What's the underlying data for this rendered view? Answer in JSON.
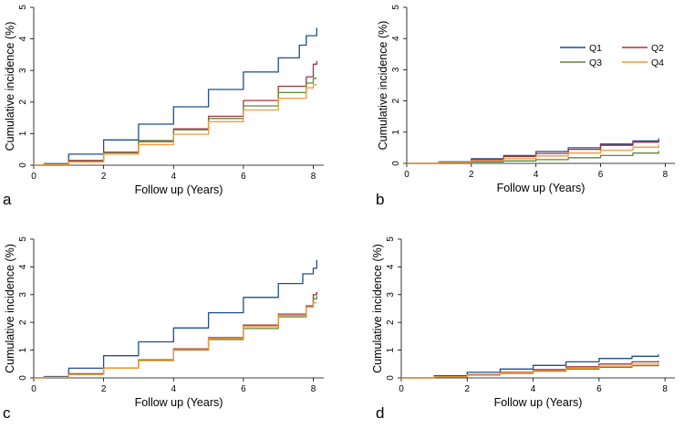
{
  "colors": {
    "Q1": "#1f4e8c",
    "Q2": "#a8333c",
    "Q3": "#5a8a35",
    "Q4": "#f39a36"
  },
  "legend": {
    "entries": [
      "Q1",
      "Q2",
      "Q3",
      "Q4"
    ],
    "placement": "top-right of panel b"
  },
  "chart_data": [
    {
      "panel": "a",
      "type": "line",
      "xlabel": "Follow up (Years)",
      "ylabel": "Cumulative incidence (%)",
      "xlim": [
        0,
        8.3
      ],
      "ylim": [
        0,
        5
      ],
      "xticks": [
        "0",
        "2",
        "4",
        "6",
        "8"
      ],
      "yticks": [
        "0",
        "1",
        "2",
        "3",
        "4",
        "5"
      ],
      "series": [
        {
          "name": "Q1",
          "x": [
            0,
            0.3,
            1,
            2,
            3,
            4,
            5,
            6,
            7,
            7.6,
            7.8,
            8,
            8.1
          ],
          "y": [
            0,
            0.05,
            0.35,
            0.8,
            1.3,
            1.85,
            2.4,
            2.95,
            3.4,
            3.8,
            4.1,
            4.1,
            4.35
          ]
        },
        {
          "name": "Q2",
          "x": [
            0,
            0.3,
            1,
            2,
            3,
            4,
            5,
            6,
            7,
            7.8,
            8,
            8.1
          ],
          "y": [
            0,
            0.02,
            0.15,
            0.4,
            0.75,
            1.15,
            1.55,
            2.05,
            2.5,
            2.8,
            3.2,
            3.3
          ]
        },
        {
          "name": "Q3",
          "x": [
            0,
            0.3,
            1,
            2,
            3,
            4,
            5,
            6,
            7,
            7.8,
            8,
            8.1
          ],
          "y": [
            0,
            0.02,
            0.12,
            0.42,
            0.78,
            1.12,
            1.48,
            1.88,
            2.3,
            2.6,
            2.75,
            2.75
          ]
        },
        {
          "name": "Q4",
          "x": [
            0,
            0.3,
            1,
            2,
            3,
            4,
            5,
            6,
            7,
            7.8,
            8,
            8.1
          ],
          "y": [
            0,
            0.02,
            0.1,
            0.35,
            0.65,
            0.98,
            1.38,
            1.75,
            2.12,
            2.45,
            2.55,
            2.55
          ]
        }
      ]
    },
    {
      "panel": "b",
      "type": "line",
      "xlabel": "Follow up (Years)",
      "ylabel": "Cumulative incidence (%)",
      "xlim": [
        0,
        8.3
      ],
      "ylim": [
        0,
        5
      ],
      "xticks": [
        "0",
        "2",
        "4",
        "6",
        "8"
      ],
      "yticks": [
        "0",
        "1",
        "2",
        "3",
        "4",
        "5"
      ],
      "series": [
        {
          "name": "Q1",
          "x": [
            0,
            1,
            2,
            3,
            4,
            5,
            6,
            7,
            7.8
          ],
          "y": [
            0,
            0.05,
            0.15,
            0.25,
            0.38,
            0.5,
            0.62,
            0.72,
            0.8
          ]
        },
        {
          "name": "Q2",
          "x": [
            0,
            1,
            2,
            3,
            4,
            5,
            6,
            7,
            7.8
          ],
          "y": [
            0,
            0.04,
            0.12,
            0.22,
            0.32,
            0.45,
            0.58,
            0.68,
            0.72
          ]
        },
        {
          "name": "Q3",
          "x": [
            0,
            1,
            2,
            3,
            4,
            5,
            6,
            7,
            7.8
          ],
          "y": [
            0,
            0.02,
            0.05,
            0.08,
            0.12,
            0.18,
            0.25,
            0.33,
            0.4
          ]
        },
        {
          "name": "Q4",
          "x": [
            0,
            1,
            2,
            3,
            4,
            5,
            6,
            7,
            7.8
          ],
          "y": [
            0,
            0.03,
            0.08,
            0.15,
            0.24,
            0.33,
            0.42,
            0.52,
            0.6
          ]
        }
      ]
    },
    {
      "panel": "c",
      "type": "line",
      "xlabel": "Follow up (Years)",
      "ylabel": "Cumulative incidence (%)",
      "xlim": [
        0,
        8.3
      ],
      "ylim": [
        0,
        5
      ],
      "xticks": [
        "0",
        "2",
        "4",
        "6",
        "8"
      ],
      "yticks": [
        "0",
        "1",
        "2",
        "3",
        "4",
        "5"
      ],
      "series": [
        {
          "name": "Q1",
          "x": [
            0,
            0.3,
            1,
            2,
            3,
            4,
            5,
            6,
            7,
            7.7,
            8,
            8.1
          ],
          "y": [
            0,
            0.05,
            0.35,
            0.8,
            1.3,
            1.8,
            2.35,
            2.9,
            3.4,
            3.75,
            3.95,
            4.25
          ]
        },
        {
          "name": "Q2",
          "x": [
            0,
            0.3,
            1,
            2,
            3,
            4,
            5,
            6,
            7,
            7.8,
            8,
            8.1
          ],
          "y": [
            0,
            0.02,
            0.15,
            0.35,
            0.65,
            1.05,
            1.45,
            1.9,
            2.3,
            2.6,
            3.0,
            3.1
          ]
        },
        {
          "name": "Q3",
          "x": [
            0,
            0.3,
            1,
            2,
            3,
            4,
            5,
            6,
            7,
            7.8,
            8,
            8.1
          ],
          "y": [
            0,
            0.02,
            0.13,
            0.36,
            0.64,
            1.0,
            1.38,
            1.78,
            2.2,
            2.55,
            2.85,
            2.95
          ]
        },
        {
          "name": "Q4",
          "x": [
            0,
            0.3,
            1,
            2,
            3,
            4,
            5,
            6,
            7,
            7.8,
            8,
            8.1
          ],
          "y": [
            0,
            0.02,
            0.12,
            0.35,
            0.62,
            1.02,
            1.42,
            1.85,
            2.25,
            2.55,
            2.7,
            2.7
          ]
        }
      ]
    },
    {
      "panel": "d",
      "type": "line",
      "xlabel": "Follow up (Years)",
      "ylabel": "Cumulative incidence (%)",
      "xlim": [
        0,
        8.3
      ],
      "ylim": [
        0,
        5
      ],
      "xticks": [
        "0",
        "2",
        "4",
        "6",
        "8"
      ],
      "yticks": [
        "0",
        "1",
        "2",
        "3",
        "4",
        "5"
      ],
      "series": [
        {
          "name": "Q1",
          "x": [
            0,
            1,
            2,
            3,
            4,
            5,
            6,
            7,
            7.8
          ],
          "y": [
            0,
            0.08,
            0.2,
            0.32,
            0.45,
            0.58,
            0.7,
            0.78,
            0.85
          ]
        },
        {
          "name": "Q2",
          "x": [
            0,
            1,
            2,
            3,
            4,
            5,
            6,
            7,
            7.8
          ],
          "y": [
            0,
            0.05,
            0.12,
            0.2,
            0.3,
            0.4,
            0.5,
            0.58,
            0.62
          ]
        },
        {
          "name": "Q3",
          "x": [
            0,
            1,
            2,
            3,
            4,
            5,
            6,
            7,
            7.8
          ],
          "y": [
            0,
            0.04,
            0.1,
            0.16,
            0.24,
            0.32,
            0.38,
            0.44,
            0.48
          ]
        },
        {
          "name": "Q4",
          "x": [
            0,
            1,
            2,
            3,
            4,
            5,
            6,
            7,
            7.8
          ],
          "y": [
            0,
            0.04,
            0.1,
            0.18,
            0.26,
            0.35,
            0.42,
            0.5,
            0.55
          ]
        }
      ]
    }
  ]
}
